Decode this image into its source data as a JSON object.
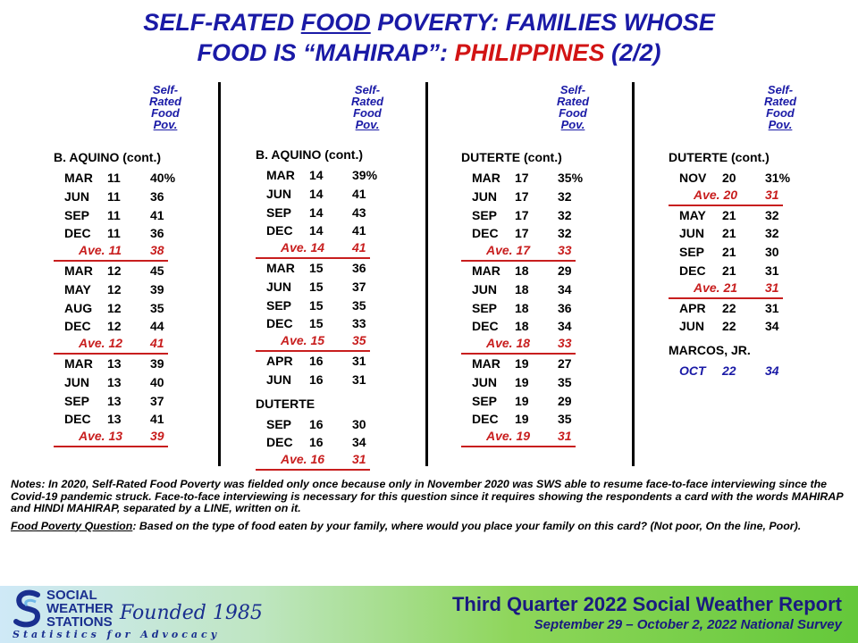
{
  "title": {
    "line1_pre": "SELF-RATED ",
    "line1_u": "FOOD",
    "line1_post": " POVERTY: FAMILIES WHOSE",
    "line2_pre": "FOOD IS “MAHIRAP”: ",
    "line2_red": "PHILIPPINES",
    "line2_post": " (2/2)"
  },
  "colhead": [
    "Self-",
    "Rated",
    "Food",
    "Pov."
  ],
  "columns": [
    {
      "president": "B. AQUINO  (cont.)",
      "rows": [
        {
          "m": "MAR",
          "y": "11",
          "v": "40%"
        },
        {
          "m": "JUN",
          "y": "11",
          "v": "36"
        },
        {
          "m": "SEP",
          "y": "11",
          "v": "41"
        },
        {
          "m": "DEC",
          "y": "11",
          "v": "36"
        },
        {
          "ave": "Ave. 11",
          "v": "38"
        },
        {
          "m": "MAR",
          "y": "12",
          "v": "45"
        },
        {
          "m": "MAY",
          "y": "12",
          "v": "39"
        },
        {
          "m": "AUG",
          "y": "12",
          "v": "35"
        },
        {
          "m": "DEC",
          "y": "12",
          "v": "44"
        },
        {
          "ave": "Ave. 12",
          "v": "41"
        },
        {
          "m": "MAR",
          "y": "13",
          "v": "39"
        },
        {
          "m": "JUN",
          "y": "13",
          "v": "40"
        },
        {
          "m": "SEP",
          "y": "13",
          "v": "37"
        },
        {
          "m": "DEC",
          "y": "13",
          "v": "41"
        },
        {
          "ave": "Ave. 13",
          "v": "39"
        }
      ]
    },
    {
      "president": "B. AQUINO  (cont.)",
      "rows": [
        {
          "m": "MAR",
          "y": "14",
          "v": "39%"
        },
        {
          "m": "JUN",
          "y": "14",
          "v": "41"
        },
        {
          "m": "SEP",
          "y": "14",
          "v": "43"
        },
        {
          "m": "DEC",
          "y": "14",
          "v": "41"
        },
        {
          "ave": "Ave. 14",
          "v": "41"
        },
        {
          "m": "MAR",
          "y": "15",
          "v": "36"
        },
        {
          "m": "JUN",
          "y": "15",
          "v": "37"
        },
        {
          "m": "SEP",
          "y": "15",
          "v": "35"
        },
        {
          "m": "DEC",
          "y": "15",
          "v": "33"
        },
        {
          "ave": "Ave. 15",
          "v": "35"
        },
        {
          "m": "APR",
          "y": "16",
          "v": "31"
        },
        {
          "m": "JUN",
          "y": "16",
          "v": "31"
        }
      ],
      "president2": "DUTERTE",
      "rows2": [
        {
          "m": "SEP",
          "y": "16",
          "v": "30"
        },
        {
          "m": "DEC",
          "y": "16",
          "v": "34"
        },
        {
          "ave": "Ave. 16",
          "v": "31"
        }
      ]
    },
    {
      "president": "DUTERTE  (cont.)",
      "rows": [
        {
          "m": "MAR",
          "y": "17",
          "v": "35%"
        },
        {
          "m": "JUN",
          "y": "17",
          "v": "32"
        },
        {
          "m": "SEP",
          "y": "17",
          "v": "32"
        },
        {
          "m": "DEC",
          "y": "17",
          "v": "32"
        },
        {
          "ave": "Ave. 17",
          "v": "33"
        },
        {
          "m": "MAR",
          "y": "18",
          "v": "29"
        },
        {
          "m": "JUN",
          "y": "18",
          "v": "34"
        },
        {
          "m": "SEP",
          "y": "18",
          "v": "36"
        },
        {
          "m": "DEC",
          "y": "18",
          "v": "34"
        },
        {
          "ave": "Ave. 18",
          "v": "33"
        },
        {
          "m": "MAR",
          "y": "19",
          "v": "27"
        },
        {
          "m": "JUN",
          "y": "19",
          "v": "35"
        },
        {
          "m": "SEP",
          "y": "19",
          "v": "29"
        },
        {
          "m": "DEC",
          "y": "19",
          "v": "35"
        },
        {
          "ave": "Ave. 19",
          "v": "31"
        }
      ]
    },
    {
      "president": "DUTERTE  (cont.)",
      "rows": [
        {
          "m": "NOV",
          "y": "20",
          "v": "31%"
        },
        {
          "ave": "Ave. 20",
          "v": "31"
        },
        {
          "m": "MAY",
          "y": "21",
          "v": "32"
        },
        {
          "m": "JUN",
          "y": "21",
          "v": "32"
        },
        {
          "m": "SEP",
          "y": "21",
          "v": "30"
        },
        {
          "m": "DEC",
          "y": "21",
          "v": "31"
        },
        {
          "ave": "Ave. 21",
          "v": "31"
        },
        {
          "m": "APR",
          "y": "22",
          "v": "31"
        },
        {
          "m": "JUN",
          "y": "22",
          "v": "34"
        }
      ],
      "president2": "MARCOS, JR.",
      "rows2": [
        {
          "m": "OCT",
          "y": "22",
          "v": "34",
          "blue": true
        }
      ]
    }
  ],
  "notes": {
    "note1": "Notes: In 2020, Self-Rated Food Poverty was fielded only once because only in November 2020 was SWS able to resume face-to-face  interviewing since the Covid-19 pandemic struck. Face-to-face interviewing is necessary for this question since it requires showing the respondents a card with the words MAHIRAP and HINDI MAHIRAP, separated by a LINE, written on it.",
    "q_label": "Food Poverty Question",
    "q_text": ":  Based on the type of food eaten by your family, where would you place your family on this card? (Not poor, On the line, Poor)."
  },
  "footer": {
    "logo_lines": [
      "SOCIAL",
      "WEATHER",
      "STATIONS"
    ],
    "founded": "Founded 1985",
    "tagline": "Statistics for Advocacy",
    "report_title": "Third Quarter 2022 Social Weather Report",
    "report_sub": "September 29 – October 2, 2022 National Survey"
  }
}
